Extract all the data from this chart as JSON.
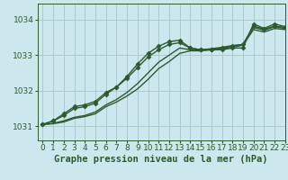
{
  "title": "Graphe pression niveau de la mer (hPa)",
  "background_color": "#cce8ee",
  "grid_color": "#aacccc",
  "line_color_dark": "#2d5a2d",
  "line_color_mid": "#3a7a3a",
  "xlim": [
    -0.5,
    23
  ],
  "ylim": [
    1030.6,
    1034.45
  ],
  "yticks": [
    1031,
    1032,
    1033,
    1034
  ],
  "xticks": [
    0,
    1,
    2,
    3,
    4,
    5,
    6,
    7,
    8,
    9,
    10,
    11,
    12,
    13,
    14,
    15,
    16,
    17,
    18,
    19,
    20,
    21,
    22,
    23
  ],
  "series": [
    {
      "y": [
        1031.05,
        1031.15,
        1031.3,
        1031.5,
        1031.55,
        1031.65,
        1031.9,
        1032.1,
        1032.4,
        1032.75,
        1033.05,
        1033.25,
        1033.38,
        1033.42,
        1033.2,
        1033.15,
        1033.15,
        1033.15,
        1033.2,
        1033.2,
        1033.88,
        1033.75,
        1033.88,
        1033.8
      ],
      "color": "#2d5a2d",
      "lw": 1.0,
      "marker": "D",
      "ms": 2.5,
      "zorder": 4
    },
    {
      "y": [
        1031.05,
        1031.15,
        1031.35,
        1031.55,
        1031.6,
        1031.7,
        1031.95,
        1032.1,
        1032.35,
        1032.65,
        1032.95,
        1033.15,
        1033.3,
        1033.35,
        1033.2,
        1033.15,
        1033.15,
        1033.2,
        1033.25,
        1033.3,
        1033.82,
        1033.73,
        1033.82,
        1033.78
      ],
      "color": "#2d5a2d",
      "lw": 1.0,
      "marker": "D",
      "ms": 2.5,
      "zorder": 4
    },
    {
      "y": [
        1031.05,
        1031.08,
        1031.15,
        1031.25,
        1031.3,
        1031.4,
        1031.6,
        1031.75,
        1031.95,
        1032.2,
        1032.5,
        1032.8,
        1033.0,
        1033.2,
        1033.15,
        1033.15,
        1033.18,
        1033.22,
        1033.27,
        1033.3,
        1033.78,
        1033.7,
        1033.8,
        1033.75
      ],
      "color": "#2d5a2d",
      "lw": 1.0,
      "marker": null,
      "ms": 0,
      "zorder": 3
    },
    {
      "y": [
        1031.05,
        1031.07,
        1031.12,
        1031.22,
        1031.27,
        1031.35,
        1031.55,
        1031.68,
        1031.85,
        1032.05,
        1032.32,
        1032.62,
        1032.82,
        1033.05,
        1033.12,
        1033.12,
        1033.15,
        1033.18,
        1033.22,
        1033.28,
        1033.72,
        1033.65,
        1033.75,
        1033.72
      ],
      "color": "#2d5a2d",
      "lw": 1.0,
      "marker": null,
      "ms": 0,
      "zorder": 3
    }
  ],
  "tick_fontsize": 6.5,
  "title_fontsize": 7.5
}
